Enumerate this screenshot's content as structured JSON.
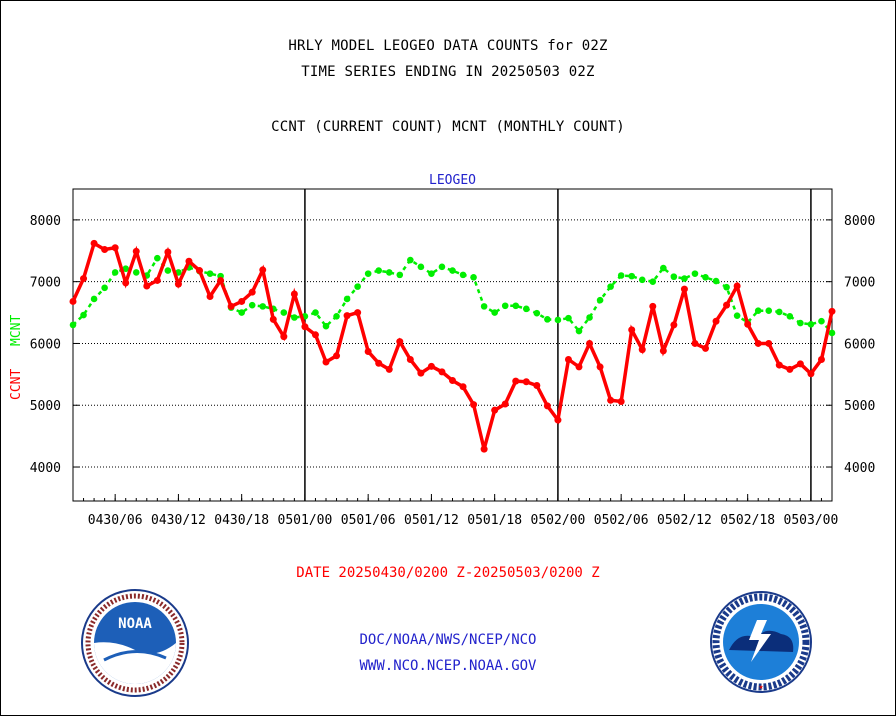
{
  "titles": {
    "line1": "HRLY MODEL LEOGEO DATA COUNTS for 02Z",
    "line2": "TIME SERIES ENDING IN 20250503 02Z",
    "line3": "CCNT (CURRENT COUNT) MCNT (MONTHLY COUNT)"
  },
  "footer": {
    "date_range": "DATE 20250430/0200 Z-20250503/0200 Z",
    "org": "DOC/NOAA/NWS/NCEP/NCO",
    "url": "WWW.NCO.NCEP.NOAA.GOV"
  },
  "logos": {
    "left_text": "NOAA",
    "right_ring_text": "NATIONAL WEATHER SERVICE"
  },
  "colors": {
    "ccnt": "#ff0000",
    "mcnt": "#00ee00",
    "label": "#2222cc"
  },
  "chart_data": {
    "type": "line",
    "title": "LEOGEO",
    "ylabel_ccnt": "CCNT",
    "ylabel_mcnt": "MCNT",
    "ylim": [
      3450,
      8500
    ],
    "yticks": [
      4000,
      5000,
      6000,
      7000,
      8000
    ],
    "grid": true,
    "x_hours_range": [
      0,
      72
    ],
    "xticks": [
      {
        "h": 4,
        "label": "0430/06"
      },
      {
        "h": 10,
        "label": "0430/12"
      },
      {
        "h": 16,
        "label": "0430/18"
      },
      {
        "h": 22,
        "label": "0501/00"
      },
      {
        "h": 28,
        "label": "0501/06"
      },
      {
        "h": 34,
        "label": "0501/12"
      },
      {
        "h": 40,
        "label": "0501/18"
      },
      {
        "h": 46,
        "label": "0502/00"
      },
      {
        "h": 52,
        "label": "0502/06"
      },
      {
        "h": 58,
        "label": "0502/12"
      },
      {
        "h": 64,
        "label": "0502/18"
      },
      {
        "h": 70,
        "label": "0503/00"
      }
    ],
    "day_boundaries_h": [
      22,
      46,
      70
    ],
    "series": [
      {
        "name": "CCNT",
        "values": [
          6680,
          7050,
          7620,
          7520,
          7550,
          6980,
          7490,
          6930,
          7020,
          7480,
          6960,
          7330,
          7180,
          6760,
          7020,
          6600,
          6680,
          6830,
          7190,
          6390,
          6110,
          6800,
          6270,
          6140,
          5700,
          5800,
          6450,
          6500,
          5870,
          5680,
          5580,
          6030,
          5740,
          5520,
          5630,
          5540,
          5400,
          5300,
          5010,
          4290,
          4920,
          5020,
          5390,
          5380,
          5320,
          4990,
          4760,
          5740,
          5620,
          6000,
          5620,
          5080,
          5060,
          6220,
          5900,
          6600,
          5880,
          6300,
          6880,
          6000,
          5920,
          6360,
          6620,
          6930,
          6310,
          6000,
          6000,
          5650,
          5580,
          5670,
          5510,
          5740,
          6520
        ]
      },
      {
        "name": "MCNT",
        "values": [
          6300,
          6460,
          6720,
          6900,
          7150,
          7210,
          7150,
          7100,
          7380,
          7180,
          7150,
          7230,
          7170,
          7130,
          7090,
          6580,
          6500,
          6620,
          6600,
          6560,
          6500,
          6420,
          6440,
          6500,
          6280,
          6440,
          6720,
          6920,
          7130,
          7180,
          7150,
          7110,
          7350,
          7240,
          7130,
          7240,
          7180,
          7110,
          7070,
          6600,
          6500,
          6610,
          6610,
          6560,
          6490,
          6390,
          6380,
          6410,
          6200,
          6420,
          6700,
          6920,
          7100,
          7090,
          7030,
          7000,
          7220,
          7080,
          7050,
          7130,
          7070,
          7010,
          6910,
          6450,
          6340,
          6530,
          6530,
          6510,
          6440,
          6330,
          6310,
          6360,
          6170
        ]
      }
    ]
  }
}
